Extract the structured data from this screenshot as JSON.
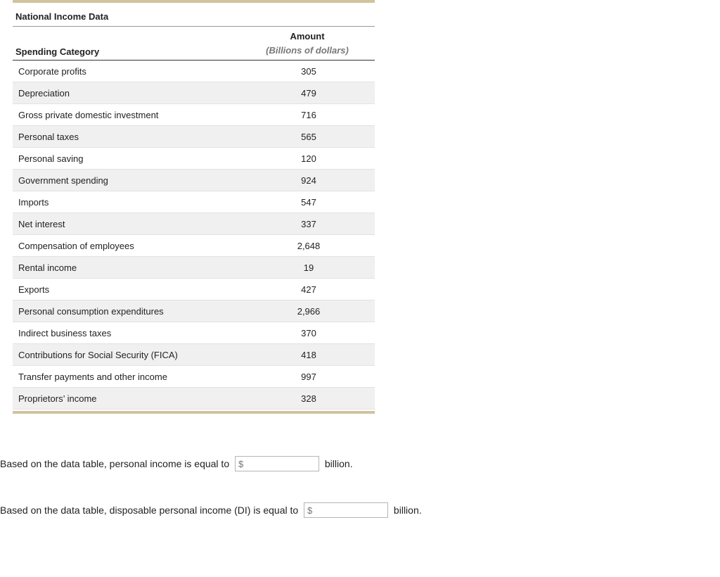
{
  "table": {
    "title": "National Income Data",
    "header": {
      "category_label": "Spending Category",
      "amount_label": "Amount",
      "amount_sub": "(Billions of dollars)"
    },
    "rows": [
      {
        "category": "Corporate profits",
        "value": "305"
      },
      {
        "category": "Depreciation",
        "value": "479"
      },
      {
        "category": "Gross private domestic investment",
        "value": "716"
      },
      {
        "category": "Personal taxes",
        "value": "565"
      },
      {
        "category": "Personal saving",
        "value": "120"
      },
      {
        "category": "Government spending",
        "value": "924"
      },
      {
        "category": "Imports",
        "value": "547"
      },
      {
        "category": "Net interest",
        "value": "337"
      },
      {
        "category": "Compensation of employees",
        "value": "2,648"
      },
      {
        "category": "Rental income",
        "value": "19"
      },
      {
        "category": "Exports",
        "value": "427"
      },
      {
        "category": "Personal consumption expenditures",
        "value": "2,966"
      },
      {
        "category": "Indirect business taxes",
        "value": "370"
      },
      {
        "category": "Contributions for Social Security (FICA)",
        "value": "418"
      },
      {
        "category": "Transfer payments and other income",
        "value": "997"
      },
      {
        "category": "Proprietors’ income",
        "value": "328"
      }
    ],
    "colors": {
      "bar": "#cfc49d",
      "alt_row_bg": "#f0f0f0",
      "divider": "#e2e2e2",
      "header_rule": "#333333",
      "title_rule": "#9a9a9a",
      "subheader_text": "#777777"
    }
  },
  "questions": {
    "q1_pre": "Based on the data table, personal income is equal to ",
    "q1_post": " billion.",
    "q2_pre": "Based on the data table, disposable personal income (DI) is equal to ",
    "q2_post": " billion.",
    "input_placeholder": "$"
  }
}
